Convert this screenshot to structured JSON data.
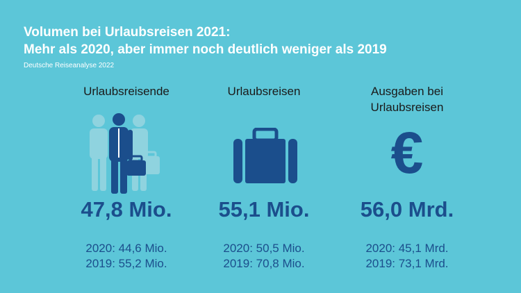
{
  "header": {
    "title_line1": "Volumen bei Urlaubsreisen 2021:",
    "title_line2": "Mehr als 2020, aber immer noch deutlich weniger als 2019",
    "source": "Deutsche Reiseanalyse 2022"
  },
  "colors": {
    "background": "#5cc6d8",
    "accent": "#1b4e8c",
    "icon_light": "#8fd3df"
  },
  "stats": [
    {
      "label": "Urlaubsreisende",
      "icon": "travelers-icon",
      "value": "47,8 Mio.",
      "y2020": "2020: 44,6 Mio.",
      "y2019": "2019: 55,2 Mio."
    },
    {
      "label": "Urlaubsreisen",
      "icon": "suitcase-icon",
      "value": "55,1 Mio.",
      "y2020": "2020: 50,5 Mio.",
      "y2019": "2019: 70,8 Mio."
    },
    {
      "label_line1": "Ausgaben bei",
      "label_line2": "Urlaubsreisen",
      "icon": "euro-icon",
      "icon_glyph": "€",
      "value": "56,0 Mrd.",
      "y2020": "2020: 45,1 Mrd.",
      "y2019": "2019: 73,1 Mrd."
    }
  ]
}
